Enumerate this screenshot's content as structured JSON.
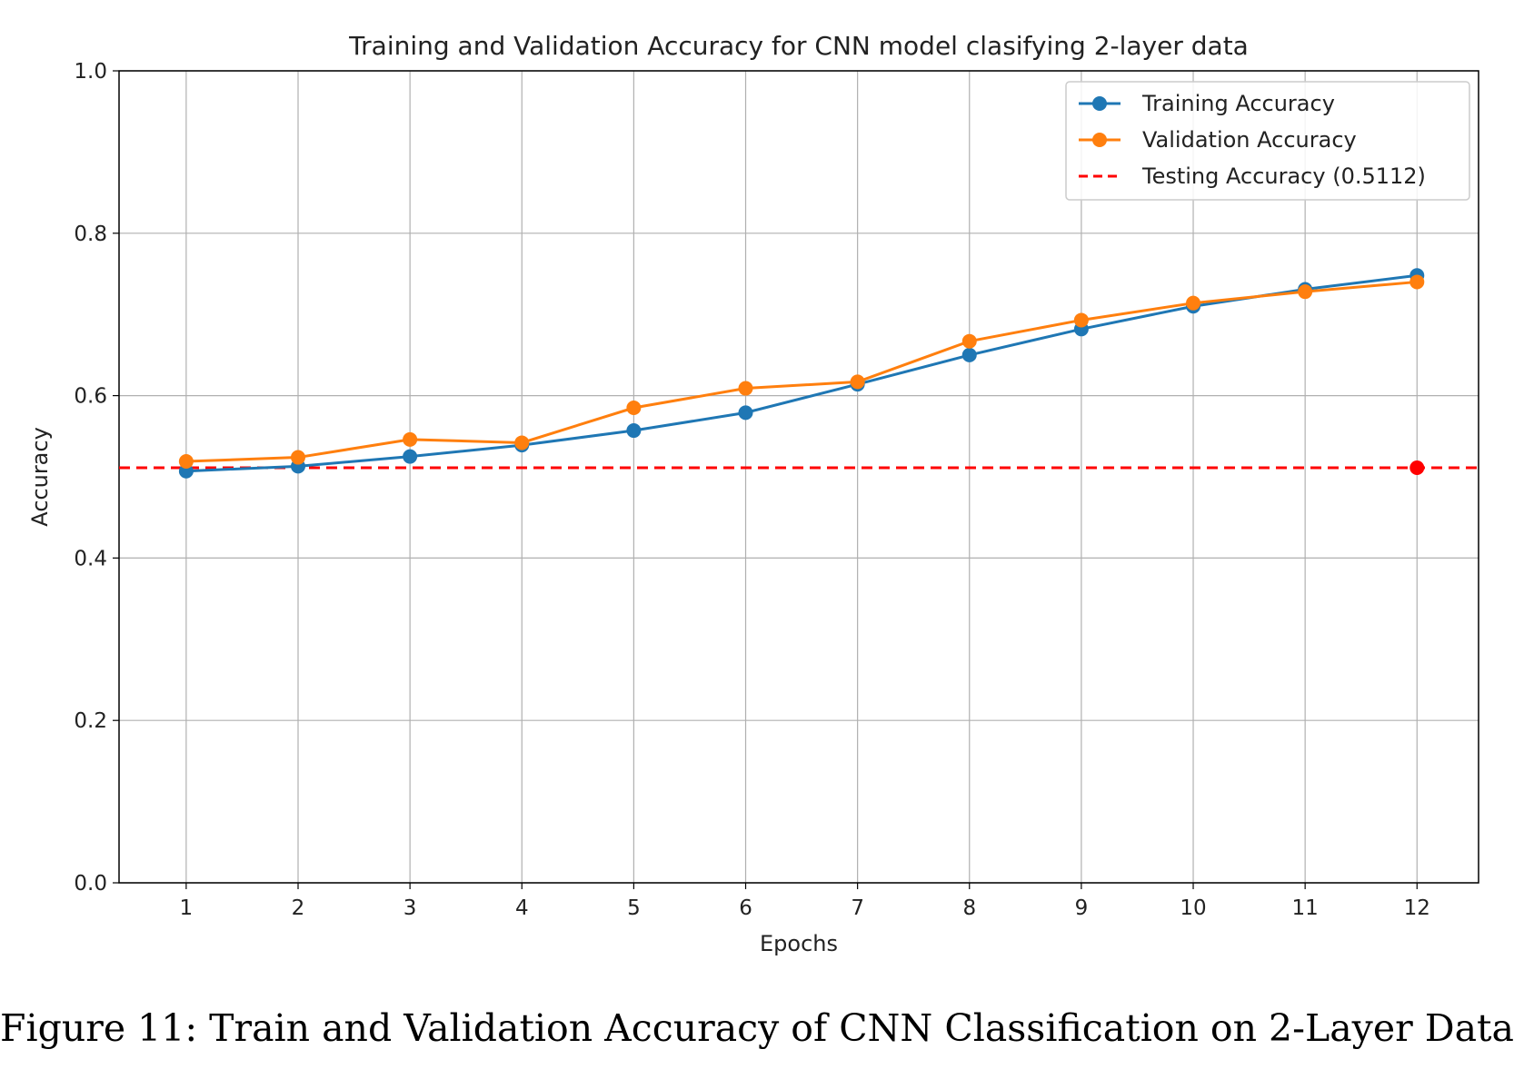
{
  "chart_data": {
    "type": "line",
    "title": "Training and Validation Accuracy for CNN model clasifying 2-layer data",
    "xlabel": "Epochs",
    "ylabel": "Accuracy",
    "x": [
      1,
      2,
      3,
      4,
      5,
      6,
      7,
      8,
      9,
      10,
      11,
      12
    ],
    "xlim": [
      0.4,
      12.55
    ],
    "ylim": [
      0.0,
      1.0
    ],
    "xticks": [
      "1",
      "2",
      "3",
      "4",
      "5",
      "6",
      "7",
      "8",
      "9",
      "10",
      "11",
      "12"
    ],
    "yticks": [
      "0.0",
      "0.2",
      "0.4",
      "0.6",
      "0.8",
      "1.0"
    ],
    "grid": true,
    "legend_position": "top-right",
    "series": [
      {
        "name": "Training Accuracy",
        "color": "#1f77b4",
        "values": [
          0.507,
          0.513,
          0.525,
          0.539,
          0.557,
          0.579,
          0.614,
          0.65,
          0.682,
          0.71,
          0.731,
          0.748
        ]
      },
      {
        "name": "Validation Accuracy",
        "color": "#ff7f0e",
        "values": [
          0.519,
          0.524,
          0.546,
          0.542,
          0.585,
          0.609,
          0.617,
          0.667,
          0.693,
          0.714,
          0.728,
          0.74
        ]
      }
    ],
    "reference_line": {
      "name": "Testing Accuracy (0.5112)",
      "value": 0.5112,
      "color": "#ff0000",
      "marker_at_x": 12
    }
  },
  "caption": "Figure 11: Train and Validation Accuracy of CNN Classification on 2-Layer Data"
}
